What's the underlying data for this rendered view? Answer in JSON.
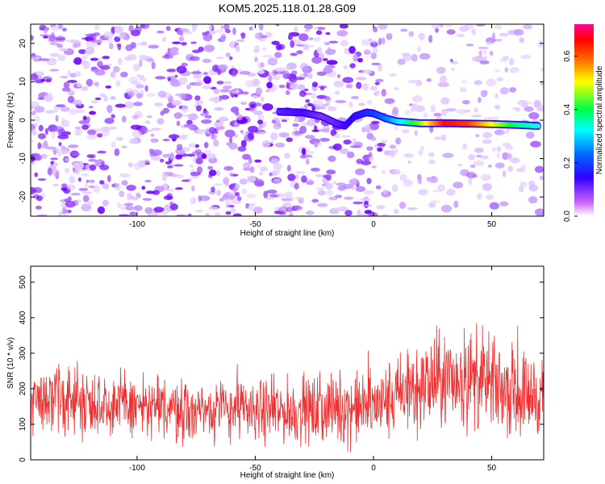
{
  "title": "KOM5.2025.118.01.28.G09",
  "chart_data": [
    {
      "type": "heatmap",
      "xlabel": "Height of straight line (km)",
      "ylabel": "Frequency (Hz)",
      "xlim": [
        -145,
        72
      ],
      "ylim": [
        -25,
        25
      ],
      "xticks": [
        -100,
        -50,
        0,
        50
      ],
      "yticks": [
        -20,
        -10,
        0,
        10,
        20
      ],
      "colorbar": {
        "label": "Normalized spectral amplitude",
        "range": [
          0.0,
          0.72
        ],
        "ticks": [
          "0.0",
          "0.2",
          "0.4",
          "0.6"
        ]
      },
      "signal_trace": {
        "x": [
          -40,
          -30,
          -22,
          -15,
          -12,
          -8,
          -3,
          0,
          5,
          10,
          20,
          30,
          40,
          50,
          60,
          70
        ],
        "y": [
          2.2,
          2.0,
          1.0,
          -1.0,
          -1.5,
          1.0,
          2.0,
          1.8,
          0.5,
          -0.3,
          -0.8,
          -0.8,
          -0.9,
          -1.0,
          -1.2,
          -1.5
        ],
        "amplitude": [
          0.12,
          0.14,
          0.1,
          0.12,
          0.14,
          0.16,
          0.18,
          0.2,
          0.24,
          0.3,
          0.45,
          0.65,
          0.62,
          0.5,
          0.38,
          0.32
        ]
      }
    },
    {
      "type": "line",
      "xlabel": "Height of straight line (km)",
      "ylabel": "SNR (10 * v/v)",
      "xlim": [
        -145,
        72
      ],
      "ylim": [
        0,
        545
      ],
      "xticks": [
        -100,
        -50,
        0,
        50
      ],
      "yticks": [
        0,
        100,
        200,
        300,
        400,
        500
      ],
      "color": "#f03030",
      "trend": {
        "x": [
          -145,
          -120,
          -100,
          -80,
          -60,
          -40,
          -20,
          0,
          10,
          20,
          30,
          40,
          50,
          60,
          72
        ],
        "mean": [
          175,
          165,
          150,
          140,
          145,
          135,
          140,
          150,
          175,
          205,
          225,
          230,
          210,
          190,
          180
        ],
        "spread": [
          70,
          70,
          65,
          65,
          60,
          65,
          70,
          75,
          85,
          95,
          100,
          105,
          95,
          90,
          80
        ]
      }
    }
  ]
}
